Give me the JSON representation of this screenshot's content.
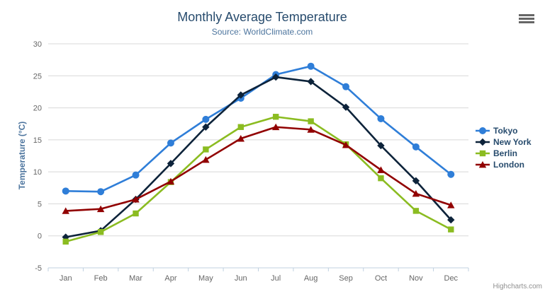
{
  "chart": {
    "credits_label": "Highcharts.com",
    "context_menu_icon": "hamburger-icon"
  },
  "chart_data": {
    "type": "line",
    "title": "Monthly Average Temperature",
    "subtitle": "Source: WorldClimate.com",
    "xlabel": "",
    "ylabel": "Temperature (°C)",
    "categories": [
      "Jan",
      "Feb",
      "Mar",
      "Apr",
      "May",
      "Jun",
      "Jul",
      "Aug",
      "Sep",
      "Oct",
      "Nov",
      "Dec"
    ],
    "ylim": [
      -5,
      30
    ],
    "yticks": [
      -5,
      0,
      5,
      10,
      15,
      20,
      25,
      30
    ],
    "grid": true,
    "legend_position": "right",
    "series": [
      {
        "name": "Tokyo",
        "color": "#2f7ed8",
        "marker": "circle",
        "values": [
          7.0,
          6.9,
          9.5,
          14.5,
          18.2,
          21.5,
          25.2,
          26.5,
          23.3,
          18.3,
          13.9,
          9.6
        ]
      },
      {
        "name": "New York",
        "color": "#0d233a",
        "marker": "diamond",
        "values": [
          -0.2,
          0.8,
          5.7,
          11.3,
          17.0,
          22.0,
          24.8,
          24.1,
          20.1,
          14.1,
          8.6,
          2.5
        ]
      },
      {
        "name": "Berlin",
        "color": "#8bbc21",
        "marker": "square",
        "values": [
          -0.9,
          0.6,
          3.5,
          8.4,
          13.5,
          17.0,
          18.6,
          17.9,
          14.3,
          9.0,
          3.9,
          1.0
        ]
      },
      {
        "name": "London",
        "color": "#910000",
        "marker": "triangle",
        "values": [
          3.9,
          4.2,
          5.7,
          8.5,
          11.9,
          15.2,
          17.0,
          16.6,
          14.2,
          10.3,
          6.6,
          4.8
        ]
      }
    ],
    "axis_colors": {
      "grid_line": "#d8d8d8",
      "axis_line": "#c0d0e0",
      "tick_label": "#666666"
    }
  }
}
